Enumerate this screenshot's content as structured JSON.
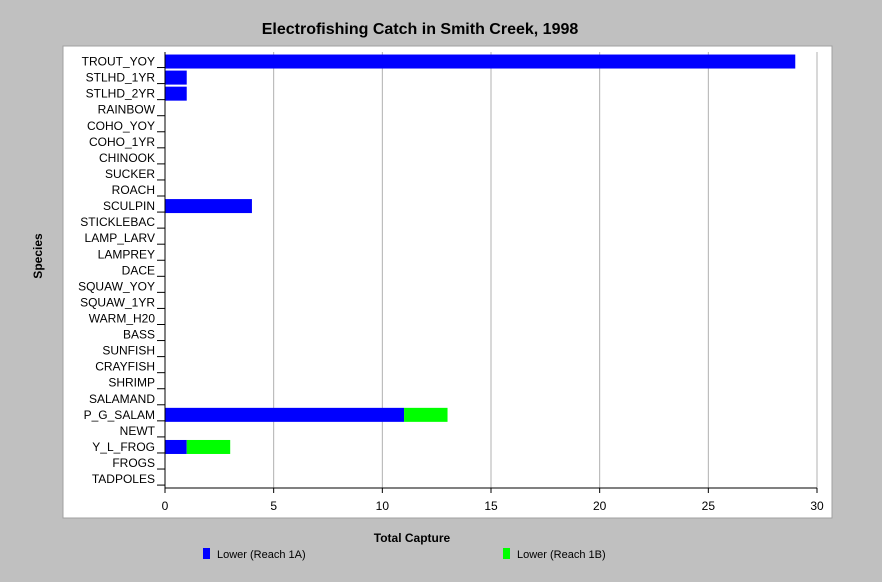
{
  "chart_data": {
    "type": "bar",
    "orientation": "horizontal",
    "stacked": true,
    "title": "Electrofishing Catch in Smith Creek, 1998",
    "xlabel": "Total Capture",
    "ylabel": "Species",
    "xlim": [
      0,
      30
    ],
    "xticks": [
      0,
      5,
      10,
      15,
      20,
      25,
      30
    ],
    "grid": "vertical",
    "legend_position": "bottom",
    "categories": [
      "TROUT_YOY",
      "STLHD_1YR",
      "STLHD_2YR",
      "RAINBOW",
      "COHO_YOY",
      "COHO_1YR",
      "CHINOOK",
      "SUCKER",
      "ROACH",
      "SCULPIN",
      "STICKLEBAC",
      "LAMP_LARV",
      "LAMPREY",
      "DACE",
      "SQUAW_YOY",
      "SQUAW_1YR",
      "WARM_H20",
      "BASS",
      "SUNFISH",
      "CRAYFISH",
      "SHRIMP",
      "SALAMAND",
      "P_G_SALAM",
      "NEWT",
      "Y_L_FROG",
      "FROGS",
      "TADPOLES"
    ],
    "series": [
      {
        "name": "Lower  (Reach 1A)",
        "color": "#0000ff",
        "values": [
          29,
          1,
          1,
          0,
          0,
          0,
          0,
          0,
          0,
          4,
          0,
          0,
          0,
          0,
          0,
          0,
          0,
          0,
          0,
          0,
          0,
          0,
          11,
          0,
          1,
          0,
          0
        ]
      },
      {
        "name": "Lower (Reach 1B)",
        "color": "#00ff00",
        "values": [
          0,
          0,
          0,
          0,
          0,
          0,
          0,
          0,
          0,
          0,
          0,
          0,
          0,
          0,
          0,
          0,
          0,
          0,
          0,
          0,
          0,
          0,
          2,
          0,
          2,
          0,
          0
        ]
      }
    ]
  }
}
